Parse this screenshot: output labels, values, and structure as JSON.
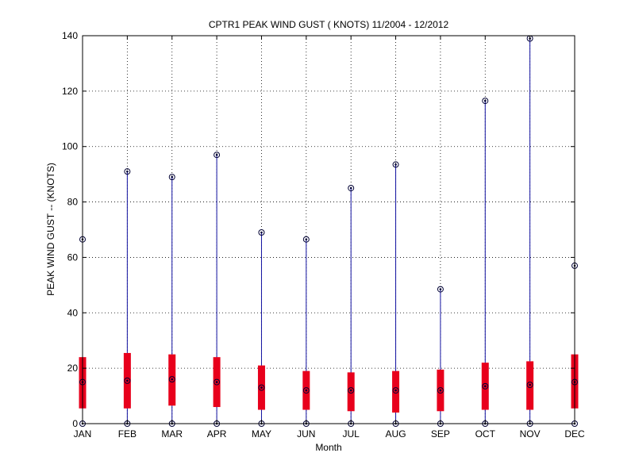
{
  "chart_data": {
    "type": "box",
    "title": "CPTR1  PEAK WIND GUST ( KNOTS) 11/2004 - 12/2012",
    "xlabel": "Month",
    "ylabel": "PEAK WIND GUST -- (KNOTS)",
    "ylim": [
      0,
      140
    ],
    "yticks": [
      "0",
      "20",
      "40",
      "60",
      "80",
      "100",
      "120",
      "140"
    ],
    "grid": true,
    "categories": [
      "JAN",
      "FEB",
      "MAR",
      "APR",
      "MAY",
      "JUN",
      "JUL",
      "AUG",
      "SEP",
      "OCT",
      "NOV",
      "DEC"
    ],
    "min": [
      0,
      0,
      0,
      0,
      0,
      0,
      0,
      0,
      0,
      0,
      0,
      0
    ],
    "q1": [
      5.5,
      5.5,
      6.5,
      6,
      5,
      5,
      4.5,
      4,
      4.5,
      5,
      5,
      5.5
    ],
    "median": [
      15,
      15.5,
      16,
      15,
      13,
      12,
      12,
      12,
      12,
      13.5,
      14,
      15
    ],
    "q3": [
      24,
      25.5,
      25,
      24,
      21,
      19,
      18.5,
      19,
      19.5,
      22,
      22.5,
      25
    ],
    "max": [
      66.5,
      91,
      89,
      97,
      69,
      66.5,
      85,
      93.5,
      48.5,
      116.5,
      139,
      57
    ],
    "colors": {
      "box": "#e8001c",
      "whisker": "#1010a0",
      "marker": "#000033"
    }
  }
}
